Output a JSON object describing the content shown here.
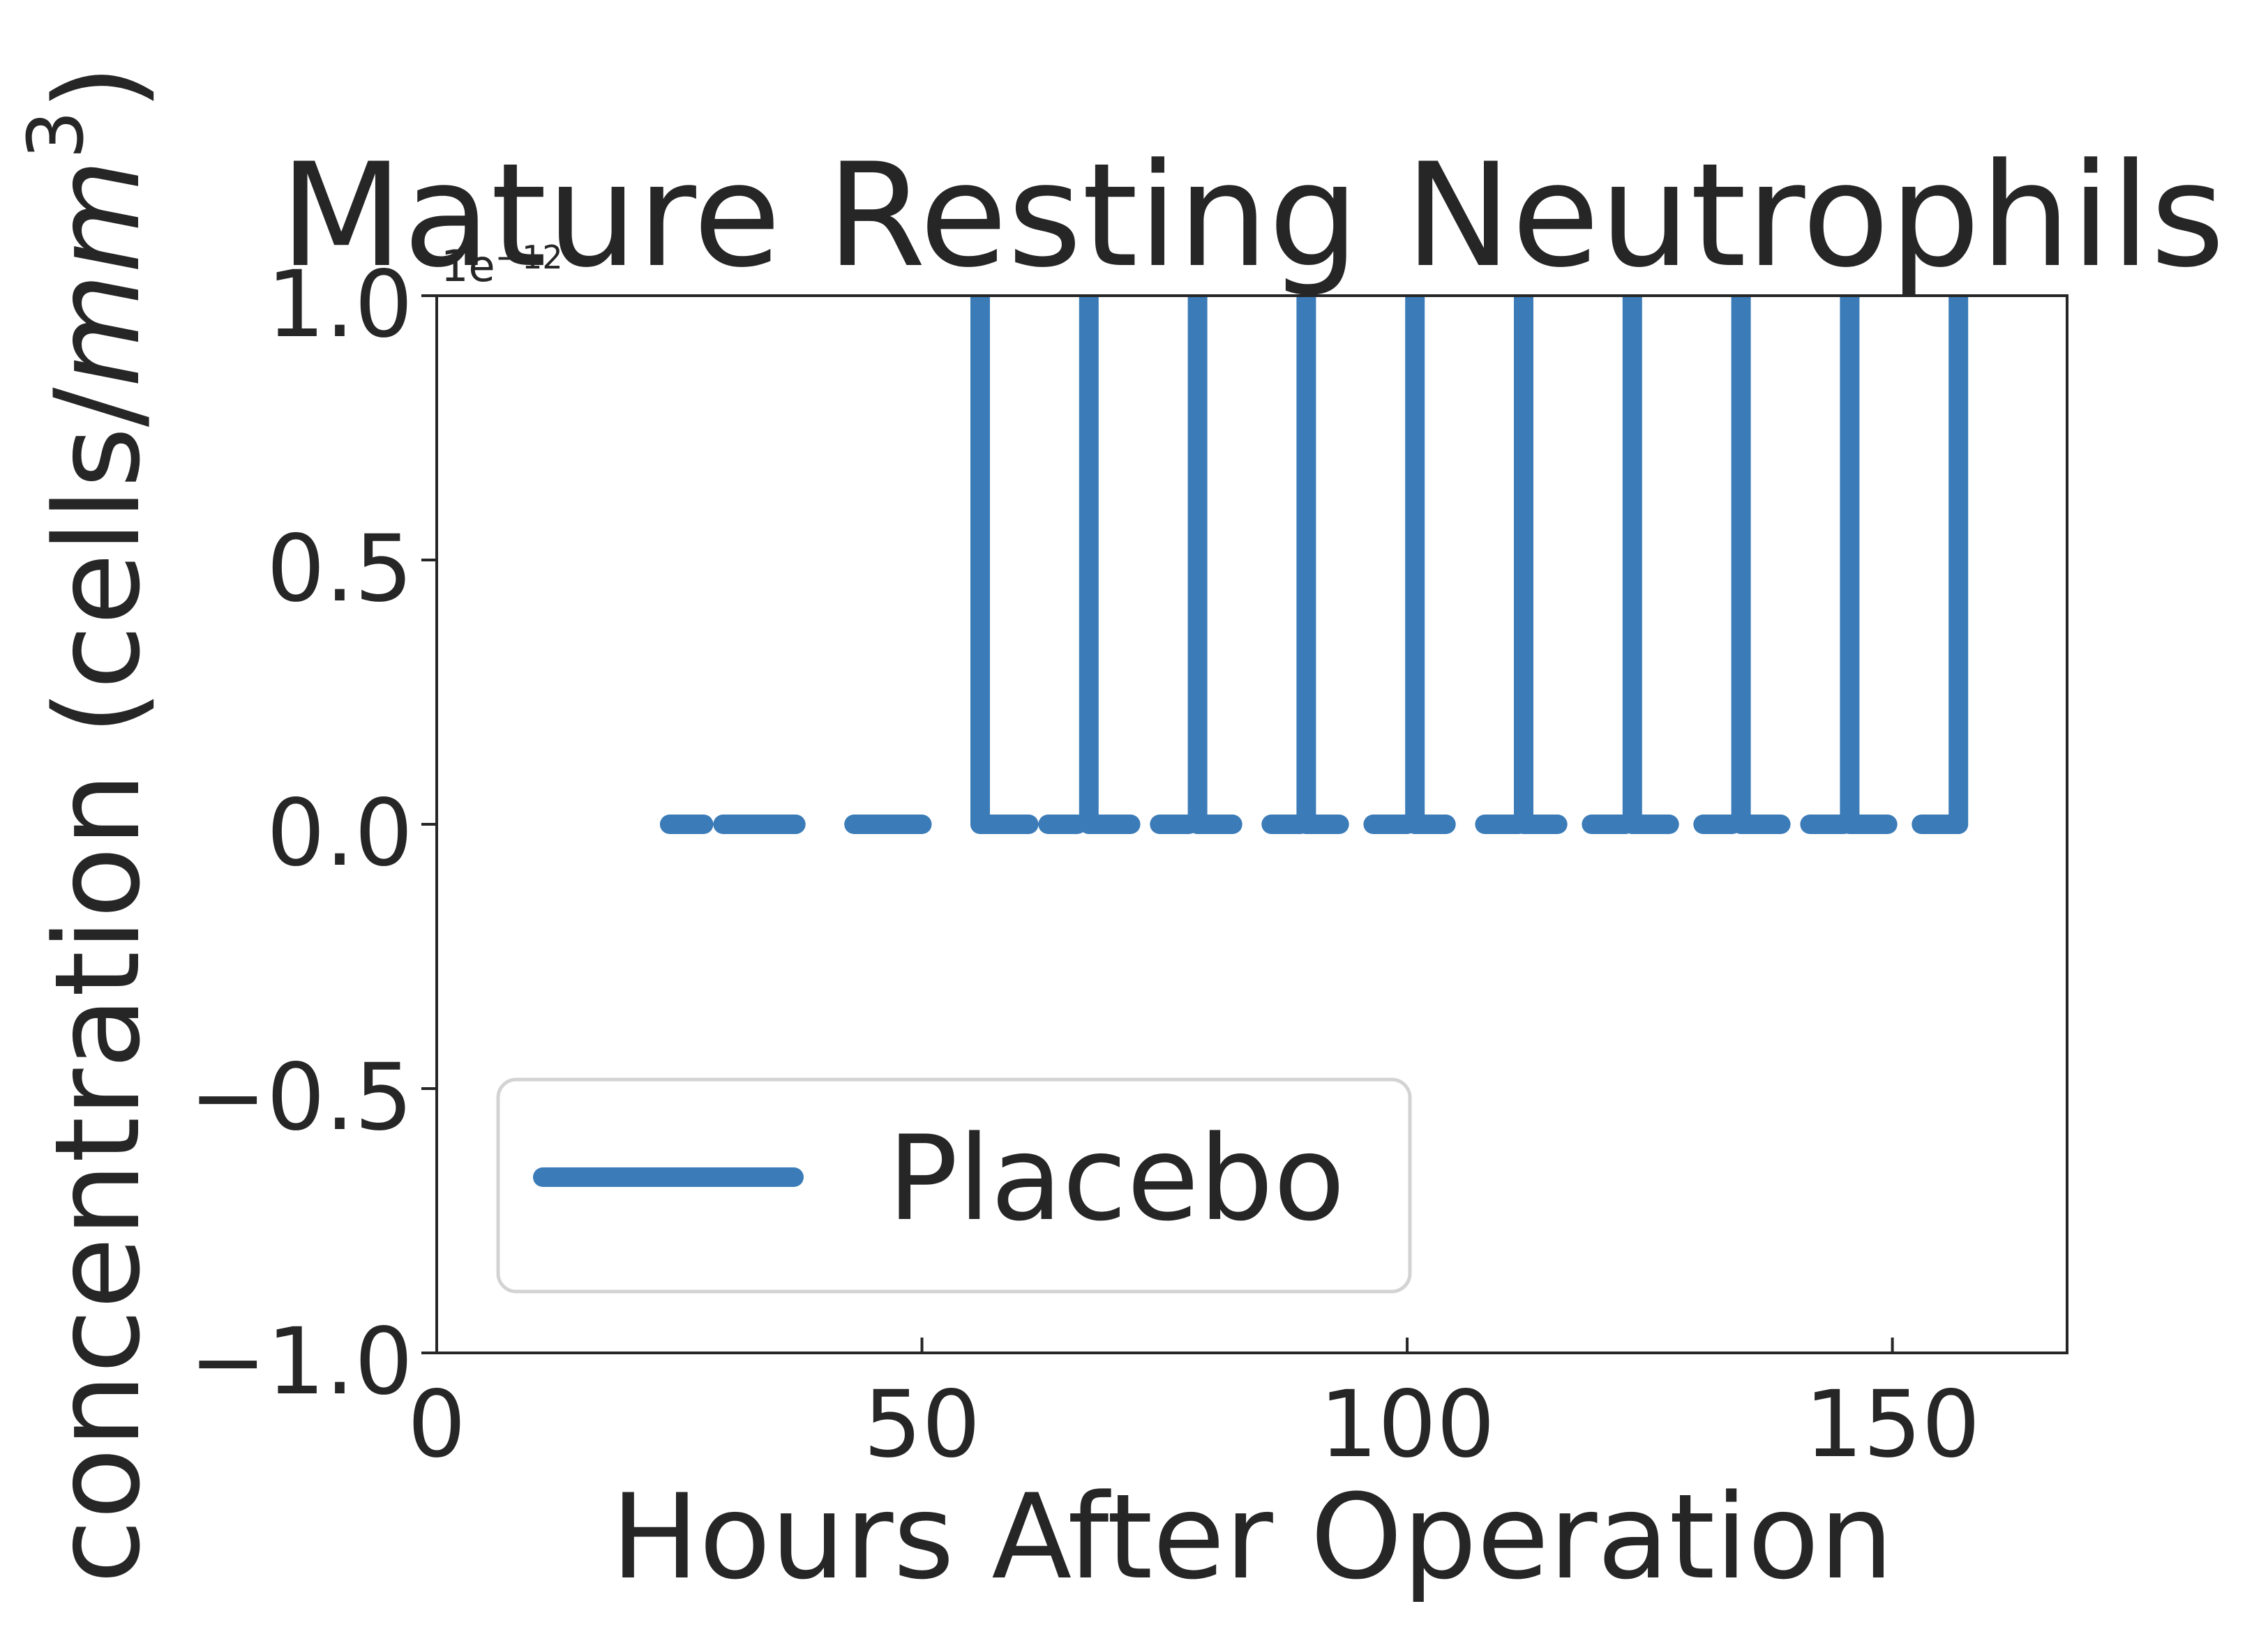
{
  "chart_data": {
    "type": "line",
    "title": "Mature Resting Neutrophils",
    "xlabel": "Hours After Operation",
    "ylabel": "concentration (cells/mm³)",
    "ylabel_base": "concentration (cells/",
    "ylabel_unit": "mm",
    "ylabel_power": "3",
    "ylabel_close": ")",
    "offset_label_base": "1e",
    "offset_label_exp": "−12",
    "xlim": [
      0,
      168
    ],
    "ylim": [
      -1.0,
      1.0
    ],
    "y_scale_multiplier": 1e-12,
    "xticks": [
      0,
      50,
      100,
      150
    ],
    "xtick_labels": [
      "0",
      "50",
      "100",
      "150"
    ],
    "yticks": [
      -1.0,
      -0.5,
      0.0,
      0.5,
      1.0
    ],
    "ytick_labels": [
      "−1.0",
      "−0.5",
      "0.0",
      "0.5",
      "1.0"
    ],
    "grid": false,
    "legend_position": "lower-left",
    "series": [
      {
        "name": "Placebo",
        "color": "#3a7bb8",
        "segments": [
          [
            [
              24,
              0
            ],
            [
              27.5,
              0
            ]
          ],
          [
            [
              29.5,
              0
            ],
            [
              37,
              0
            ]
          ],
          [
            [
              43,
              0
            ],
            [
              50,
              0
            ]
          ],
          [
            [
              56,
              0
            ],
            [
              56,
              1.2
            ]
          ],
          [
            [
              56,
              0
            ],
            [
              61,
              0
            ]
          ],
          [
            [
              63,
              0
            ],
            [
              66,
              0
            ]
          ],
          [
            [
              67.2,
              0
            ],
            [
              67.2,
              1.2
            ]
          ],
          [
            [
              67.2,
              0
            ],
            [
              71.5,
              0
            ]
          ],
          [
            [
              74.5,
              0
            ],
            [
              77.5,
              0
            ]
          ],
          [
            [
              78.4,
              0
            ],
            [
              78.4,
              1.2
            ]
          ],
          [
            [
              78.4,
              0
            ],
            [
              82,
              0
            ]
          ],
          [
            [
              86,
              0
            ],
            [
              89,
              0
            ]
          ],
          [
            [
              89.6,
              0
            ],
            [
              89.6,
              1.2
            ]
          ],
          [
            [
              89.6,
              0
            ],
            [
              93,
              0
            ]
          ],
          [
            [
              96.5,
              0
            ],
            [
              100,
              0
            ]
          ],
          [
            [
              100.8,
              0
            ],
            [
              100.8,
              1.2
            ]
          ],
          [
            [
              100.8,
              0
            ],
            [
              104,
              0
            ]
          ],
          [
            [
              108,
              0
            ],
            [
              111.5,
              0
            ]
          ],
          [
            [
              112,
              0
            ],
            [
              112,
              1.2
            ]
          ],
          [
            [
              112,
              0
            ],
            [
              115.5,
              0
            ]
          ],
          [
            [
              119,
              0
            ],
            [
              122.5,
              0
            ]
          ],
          [
            [
              123.2,
              0
            ],
            [
              123.2,
              1.2
            ]
          ],
          [
            [
              123.2,
              0
            ],
            [
              127,
              0
            ]
          ],
          [
            [
              130.5,
              0
            ],
            [
              133.5,
              0
            ]
          ],
          [
            [
              134.4,
              0
            ],
            [
              134.4,
              1.2
            ]
          ],
          [
            [
              134.4,
              0
            ],
            [
              138.5,
              0
            ]
          ],
          [
            [
              141.5,
              0
            ],
            [
              145,
              0
            ]
          ],
          [
            [
              145.6,
              0
            ],
            [
              145.6,
              1.2
            ]
          ],
          [
            [
              145.6,
              0
            ],
            [
              149.5,
              0
            ]
          ],
          [
            [
              153,
              0
            ],
            [
              156.8,
              0
            ]
          ],
          [
            [
              156.8,
              0
            ],
            [
              156.8,
              1.2
            ]
          ]
        ]
      }
    ]
  }
}
